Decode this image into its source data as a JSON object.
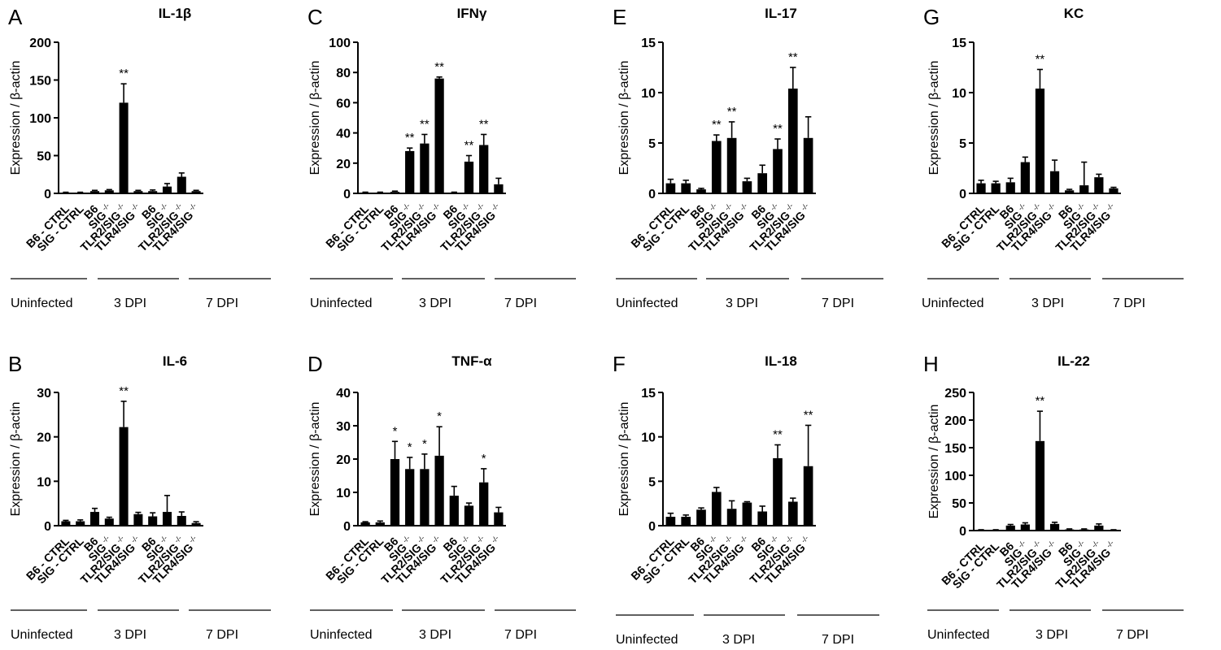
{
  "categories": [
    "B6 - CTRL",
    "SIG - CTRL",
    "B6",
    "SIG",
    "TLR2/SIG",
    "TLR4/SIG",
    "B6",
    "SIG",
    "TLR2/SIG",
    "TLR4/SIG"
  ],
  "knockout_sup": "-/-",
  "ylabel": "Expression / β-actin",
  "groups": [
    "Uninfected",
    "3 DPI",
    "7 DPI"
  ],
  "chart_data": [
    {
      "panel": "A",
      "type": "bar",
      "title": "IL-1β",
      "ylim": [
        0,
        200
      ],
      "ticks": [
        0,
        50,
        100,
        150,
        200
      ],
      "values": [
        1,
        1,
        3,
        4,
        120,
        3,
        3,
        9,
        22,
        3
      ],
      "errors": [
        0.5,
        0.5,
        1,
        1,
        25,
        1,
        1.5,
        4,
        5,
        1
      ],
      "annotations": [
        "",
        "",
        "",
        "",
        "**",
        "",
        "",
        "",
        "",
        ""
      ]
    },
    {
      "panel": "C",
      "type": "bar",
      "title": "IFNγ",
      "ylim": [
        0,
        100
      ],
      "ticks": [
        0,
        20,
        40,
        60,
        80,
        100
      ],
      "values": [
        0.5,
        0.5,
        1,
        28,
        33,
        76,
        0.5,
        21,
        32,
        6
      ],
      "errors": [
        0.3,
        0.3,
        0.5,
        2,
        6,
        1,
        0.3,
        4,
        7,
        4
      ],
      "annotations": [
        "",
        "",
        "",
        "**",
        "**",
        "**",
        "",
        "**",
        "**",
        ""
      ]
    },
    {
      "panel": "E",
      "type": "bar",
      "title": "IL-17",
      "ylim": [
        0,
        15
      ],
      "ticks": [
        0,
        5,
        10,
        15
      ],
      "values": [
        1.0,
        1.0,
        0.4,
        5.2,
        5.5,
        1.2,
        2.0,
        4.4,
        10.4,
        5.5
      ],
      "errors": [
        0.4,
        0.3,
        0.1,
        0.6,
        1.6,
        0.3,
        0.8,
        1.0,
        2.1,
        2.1
      ],
      "annotations": [
        "",
        "",
        "",
        "**",
        "**",
        "",
        "",
        "**",
        "**",
        ""
      ]
    },
    {
      "panel": "G",
      "type": "bar",
      "title": "KC",
      "ylim": [
        0,
        15
      ],
      "ticks": [
        0,
        5,
        10,
        15
      ],
      "values": [
        1.0,
        1.0,
        1.1,
        3.1,
        10.4,
        2.2,
        0.3,
        0.8,
        1.6,
        0.5
      ],
      "errors": [
        0.3,
        0.2,
        0.4,
        0.5,
        1.9,
        1.1,
        0.1,
        2.3,
        0.3,
        0.1
      ],
      "annotations": [
        "",
        "",
        "",
        "",
        "**",
        "",
        "",
        "",
        "",
        ""
      ]
    },
    {
      "panel": "B",
      "type": "bar",
      "title": "IL-6",
      "ylim": [
        0,
        30
      ],
      "ticks": [
        0,
        10,
        20,
        30
      ],
      "values": [
        1,
        1,
        3.1,
        1.6,
        22.2,
        2.6,
        2.1,
        3.1,
        2.2,
        0.6
      ],
      "errors": [
        0.2,
        0.3,
        0.8,
        0.3,
        5.8,
        0.4,
        0.8,
        3.7,
        0.9,
        0.3
      ],
      "annotations": [
        "",
        "",
        "",
        "",
        "**",
        "",
        "",
        "",
        "",
        ""
      ]
    },
    {
      "panel": "D",
      "type": "bar",
      "title": "TNF-α",
      "ylim": [
        0,
        40
      ],
      "ticks": [
        0,
        10,
        20,
        30,
        40
      ],
      "values": [
        1,
        1,
        20,
        17,
        17,
        21,
        9,
        6,
        13,
        4
      ],
      "errors": [
        0.2,
        0.4,
        5.3,
        3.5,
        4.5,
        8.7,
        2.8,
        0.8,
        4.1,
        1.5
      ],
      "annotations": [
        "",
        "",
        "*",
        "*",
        "*",
        "*",
        "",
        "",
        "*",
        ""
      ]
    },
    {
      "panel": "F",
      "type": "bar",
      "title": "IL-18",
      "ylim": [
        0,
        15
      ],
      "ticks": [
        0,
        5,
        10,
        15
      ],
      "values": [
        1.0,
        1.0,
        1.8,
        3.8,
        1.9,
        2.6,
        1.6,
        7.6,
        2.7,
        6.7
      ],
      "errors": [
        0.4,
        0.2,
        0.2,
        0.5,
        0.9,
        0.1,
        0.6,
        1.5,
        0.4,
        4.6
      ],
      "annotations": [
        "",
        "",
        "",
        "",
        "",
        "",
        "",
        "**",
        "",
        "**"
      ]
    },
    {
      "panel": "H",
      "type": "bar",
      "title": "IL-22",
      "ylim": [
        0,
        250
      ],
      "ticks": [
        0,
        50,
        100,
        150,
        200,
        250
      ],
      "values": [
        1,
        1,
        9,
        11,
        162,
        12,
        2,
        2,
        9,
        1
      ],
      "errors": [
        0.5,
        0.5,
        2,
        3,
        54,
        3,
        1,
        1,
        3,
        0.5
      ],
      "annotations": [
        "",
        "",
        "",
        "",
        "**",
        "",
        "",
        "",
        "",
        ""
      ]
    }
  ]
}
